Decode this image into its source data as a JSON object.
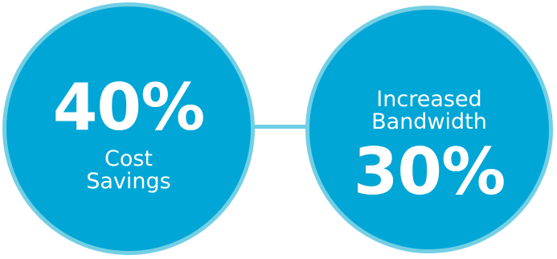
{
  "colors": {
    "circle_fill": "#00a6d6",
    "circle_border": "#73cfe4",
    "connector": "#6fcfe3",
    "text": "#ffffff"
  },
  "stats": [
    {
      "value": "40%",
      "label_line1": "Cost",
      "label_line2": "Savings"
    },
    {
      "label_line1": "Increased",
      "label_line2": "Bandwidth",
      "value": "30%"
    }
  ]
}
